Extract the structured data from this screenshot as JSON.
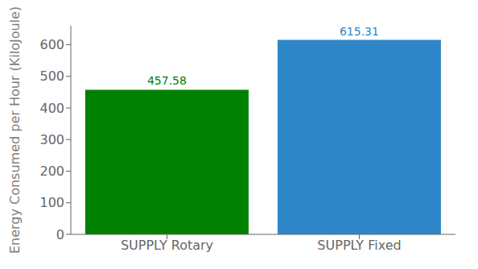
{
  "chart_data": {
    "type": "bar",
    "categories": [
      "SUPPLY Rotary",
      "SUPPLY Fixed"
    ],
    "values": [
      457.58,
      615.31
    ],
    "colors": [
      "#008000",
      "#2e86c8"
    ],
    "ylabel": "Energy Consumed per Hour (KiloJoule)",
    "ylim": [
      0,
      660
    ],
    "yticks": [
      0,
      100,
      200,
      300,
      400,
      500,
      600
    ],
    "data_labels": true,
    "grid": false
  }
}
